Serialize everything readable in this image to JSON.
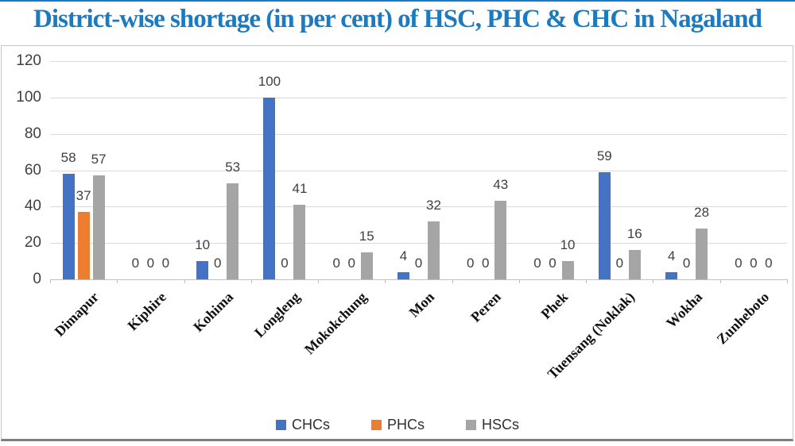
{
  "page": {
    "top_bar_color": "#1b7ac0",
    "title_color": "#1b7ac0",
    "frame_border_color": "#c6c6c6",
    "frame_bottom_color": "#7f7f7f"
  },
  "title": "District-wise shortage (in per cent) of HSC, PHC & CHC in Nagaland",
  "chart_data": {
    "type": "bar",
    "title": "District-wise shortage (in per cent) of HSC, PHC & CHC in Nagaland",
    "categories": [
      "Dimapur",
      "Kiphire",
      "Kohima",
      "Longleng",
      "Mokokchung",
      "Mon",
      "Peren",
      "Phek",
      "Tuensang (Noklak)",
      "Wokha",
      "Zunheboto"
    ],
    "series": [
      {
        "name": "CHCs",
        "color": "#4472C4",
        "values": [
          58,
          0,
          10,
          100,
          0,
          4,
          0,
          0,
          59,
          4,
          0
        ]
      },
      {
        "name": "PHCs",
        "color": "#ED7D31",
        "values": [
          37,
          0,
          0,
          0,
          0,
          0,
          0,
          0,
          0,
          0,
          0
        ]
      },
      {
        "name": "HSCs",
        "color": "#A5A5A5",
        "values": [
          57,
          0,
          53,
          41,
          15,
          32,
          43,
          10,
          16,
          28,
          0
        ]
      }
    ],
    "xlabel": "",
    "ylabel": "",
    "ylim": [
      0,
      120
    ],
    "yticks": [
      0,
      20,
      40,
      60,
      80,
      100,
      120
    ],
    "grid": true,
    "gridline_color": "#d9d9d9",
    "axis_line_color": "#bfbfbf",
    "axis_text_color": "#404040",
    "data_labels": "outside-end",
    "legend_position": "bottom"
  },
  "legend": {
    "items": [
      {
        "label": "CHCs",
        "color": "#4472C4"
      },
      {
        "label": "PHCs",
        "color": "#ED7D31"
      },
      {
        "label": "HSCs",
        "color": "#A5A5A5"
      }
    ]
  }
}
